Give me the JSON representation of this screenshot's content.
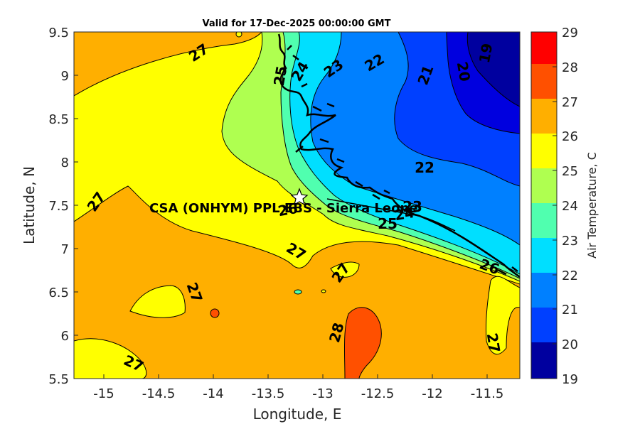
{
  "title": "Valid for 17-Dec-2025 00:00:00 GMT",
  "xlabel": "Longitude, E",
  "ylabel": "Latitude, N",
  "colorbar_label": "Air Temperature, C",
  "annotation": "CSA (ONHYM) PPL EBS  - Sierra Leone",
  "x_ticks": [
    "-15",
    "-14.5",
    "-14",
    "-13.5",
    "-13",
    "-12.5",
    "-12",
    "-11.5"
  ],
  "y_ticks": [
    "9.5",
    "9",
    "8.5",
    "8",
    "7.5",
    "7",
    "6.5",
    "6",
    "5.5"
  ],
  "colorbar_ticks": [
    "29",
    "28",
    "27",
    "26",
    "25",
    "24",
    "23",
    "22",
    "21",
    "20",
    "19"
  ],
  "contour_labels": [
    "27",
    "27",
    "27",
    "27",
    "27",
    "27",
    "27",
    "26",
    "26",
    "25",
    "25",
    "24",
    "24",
    "23",
    "23",
    "22",
    "22",
    "21",
    "20",
    "19",
    "28"
  ],
  "colors": {
    "c19": "#00009F",
    "c20": "#0000DF",
    "c21": "#0040FF",
    "c22": "#0080FF",
    "c23": "#00DFFF",
    "c24": "#50FFAF",
    "c25": "#AFFF50",
    "c26": "#FFFF00",
    "c27": "#FFAF00",
    "c28": "#FF5000",
    "c29": "#FF0000"
  }
}
